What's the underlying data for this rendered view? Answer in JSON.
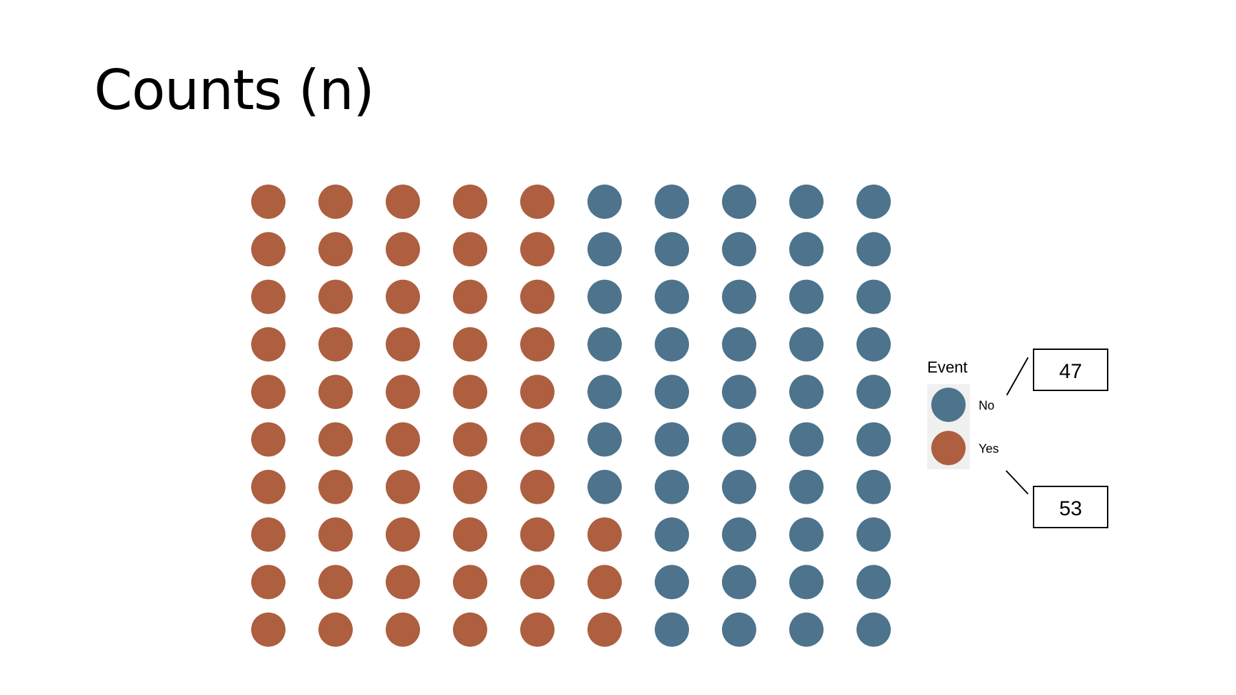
{
  "title": "Counts (n)",
  "colors": {
    "no": "#4e738c",
    "yes": "#ad5f3f",
    "legend_bg": "#f0f0f0",
    "stroke": "#000000"
  },
  "legend": {
    "title": "Event",
    "items": [
      {
        "label": "No",
        "color": "#4e738c"
      },
      {
        "label": "Yes",
        "color": "#ad5f3f"
      }
    ]
  },
  "callouts": {
    "no_count": "47",
    "yes_count": "53"
  },
  "chart_data": {
    "type": "waffle",
    "grid": {
      "rows": 10,
      "columns": 10
    },
    "categories": [
      "No",
      "Yes"
    ],
    "values": [
      47,
      53
    ],
    "column_fill": [
      {
        "yes": 10,
        "no": 0
      },
      {
        "yes": 10,
        "no": 0
      },
      {
        "yes": 10,
        "no": 0
      },
      {
        "yes": 10,
        "no": 0
      },
      {
        "yes": 10,
        "no": 0
      },
      {
        "yes": 3,
        "no": 7
      },
      {
        "yes": 0,
        "no": 10
      },
      {
        "yes": 0,
        "no": 10
      },
      {
        "yes": 0,
        "no": 10
      },
      {
        "yes": 0,
        "no": 10
      }
    ],
    "legend_position": "right"
  }
}
